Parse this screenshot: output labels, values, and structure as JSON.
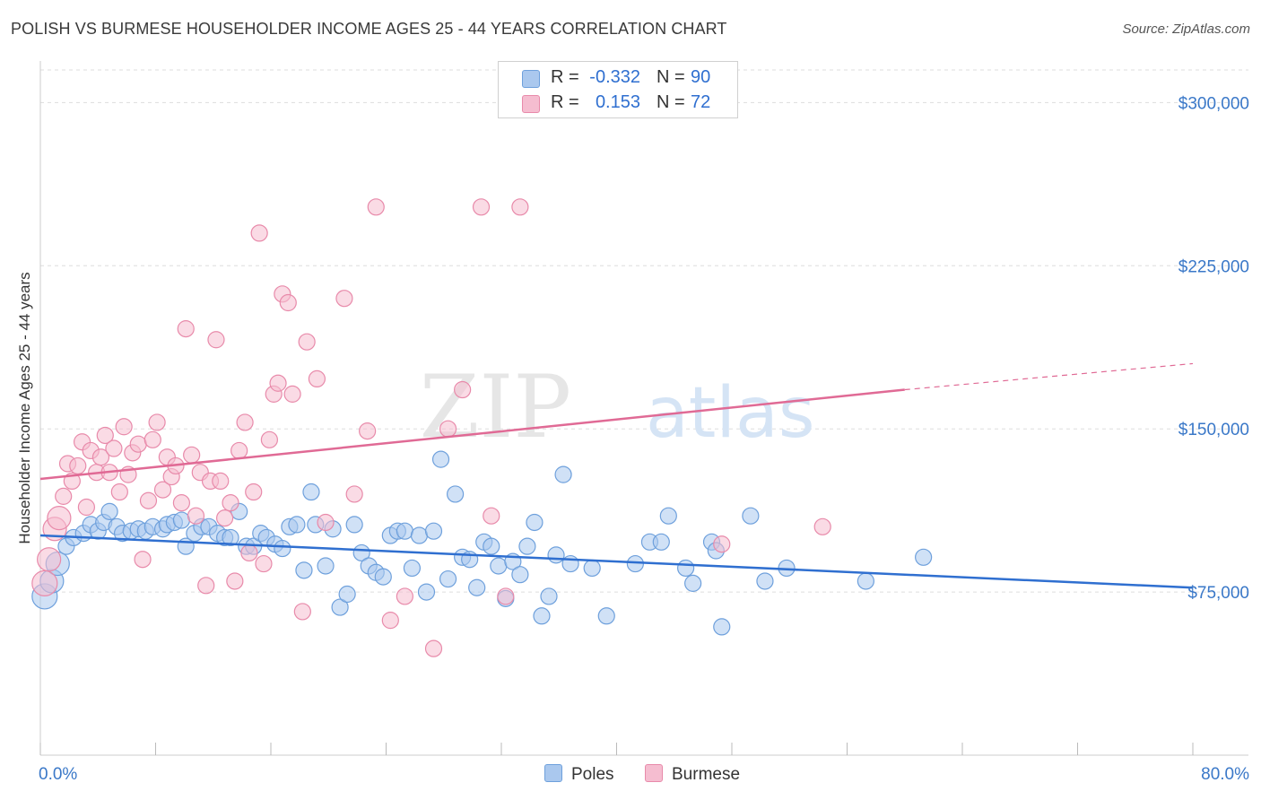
{
  "header": {
    "title": "POLISH VS BURMESE HOUSEHOLDER INCOME AGES 25 - 44 YEARS CORRELATION CHART",
    "source": "Source: ZipAtlas.com"
  },
  "watermark": {
    "zip": "ZIP",
    "atlas": "atlas"
  },
  "legend": {
    "poles": {
      "r_label": "R =",
      "r_value": "-0.332",
      "n_label": "N =",
      "n_value": "90"
    },
    "burmese": {
      "r_label": "R =",
      "r_value": "0.153",
      "n_label": "N =",
      "n_value": "72"
    }
  },
  "bottom_legend": {
    "poles": "Poles",
    "burmese": "Burmese"
  },
  "colors": {
    "poles_fill": "#aac8ee",
    "poles_stroke": "#6ea0dc",
    "poles_line": "#2f6fd0",
    "burmese_fill": "#f5bdd0",
    "burmese_stroke": "#e88aaa",
    "burmese_line": "#e06a95",
    "axis_label": "#3a78c8"
  },
  "chart_data": {
    "type": "scatter",
    "title": "POLISH VS BURMESE HOUSEHOLDER INCOME AGES 25 - 44 YEARS CORRELATION CHART",
    "xlabel": "",
    "ylabel": "Householder Income Ages 25 - 44 years",
    "xlim": [
      0,
      80
    ],
    "ylim": [
      0,
      315000
    ],
    "x_tick_labels": [
      "0.0%",
      "80.0%"
    ],
    "y_ticks": [
      75000,
      150000,
      225000,
      300000
    ],
    "y_tick_labels": [
      "$75,000",
      "$150,000",
      "$225,000",
      "$300,000"
    ],
    "grid": true,
    "legend_position": "top-center",
    "series": [
      {
        "name": "Poles",
        "trend": {
          "x": [
            0,
            80
          ],
          "y": [
            101000,
            77000
          ],
          "dashed_after": null
        },
        "points": [
          [
            0.3,
            73000
          ],
          [
            0.8,
            80000
          ],
          [
            1.2,
            88000
          ],
          [
            1.8,
            96000
          ],
          [
            2.3,
            100000
          ],
          [
            3.0,
            102000
          ],
          [
            3.5,
            106000
          ],
          [
            4.0,
            103000
          ],
          [
            4.4,
            107000
          ],
          [
            4.8,
            112000
          ],
          [
            5.3,
            105000
          ],
          [
            5.7,
            102000
          ],
          [
            6.3,
            103000
          ],
          [
            6.8,
            104000
          ],
          [
            7.3,
            103000
          ],
          [
            7.8,
            105000
          ],
          [
            8.5,
            104000
          ],
          [
            8.8,
            106000
          ],
          [
            9.3,
            107000
          ],
          [
            9.8,
            108000
          ],
          [
            10.1,
            96000
          ],
          [
            10.7,
            102000
          ],
          [
            11.2,
            105000
          ],
          [
            11.7,
            105000
          ],
          [
            12.3,
            102000
          ],
          [
            12.8,
            100000
          ],
          [
            13.2,
            100000
          ],
          [
            13.8,
            112000
          ],
          [
            14.3,
            96000
          ],
          [
            14.8,
            96000
          ],
          [
            15.3,
            102000
          ],
          [
            15.7,
            100000
          ],
          [
            16.3,
            97000
          ],
          [
            16.8,
            95000
          ],
          [
            17.3,
            105000
          ],
          [
            17.8,
            106000
          ],
          [
            18.3,
            85000
          ],
          [
            18.8,
            121000
          ],
          [
            19.1,
            106000
          ],
          [
            19.8,
            87000
          ],
          [
            20.3,
            104000
          ],
          [
            20.8,
            68000
          ],
          [
            21.3,
            74000
          ],
          [
            21.8,
            106000
          ],
          [
            22.3,
            93000
          ],
          [
            22.8,
            87000
          ],
          [
            23.3,
            84000
          ],
          [
            23.8,
            82000
          ],
          [
            24.3,
            101000
          ],
          [
            24.8,
            103000
          ],
          [
            25.3,
            103000
          ],
          [
            25.8,
            86000
          ],
          [
            26.3,
            101000
          ],
          [
            26.8,
            75000
          ],
          [
            27.3,
            103000
          ],
          [
            27.8,
            136000
          ],
          [
            28.3,
            81000
          ],
          [
            28.8,
            120000
          ],
          [
            29.3,
            91000
          ],
          [
            29.8,
            90000
          ],
          [
            30.3,
            77000
          ],
          [
            30.8,
            98000
          ],
          [
            31.3,
            96000
          ],
          [
            31.8,
            87000
          ],
          [
            32.3,
            72000
          ],
          [
            32.8,
            89000
          ],
          [
            33.3,
            83000
          ],
          [
            33.8,
            96000
          ],
          [
            34.3,
            107000
          ],
          [
            34.8,
            64000
          ],
          [
            35.3,
            73000
          ],
          [
            35.8,
            92000
          ],
          [
            36.3,
            129000
          ],
          [
            36.8,
            88000
          ],
          [
            38.3,
            86000
          ],
          [
            39.3,
            64000
          ],
          [
            41.3,
            88000
          ],
          [
            42.3,
            98000
          ],
          [
            43.1,
            98000
          ],
          [
            43.6,
            110000
          ],
          [
            44.8,
            86000
          ],
          [
            45.3,
            79000
          ],
          [
            46.6,
            98000
          ],
          [
            46.9,
            94000
          ],
          [
            47.3,
            59000
          ],
          [
            49.3,
            110000
          ],
          [
            50.3,
            80000
          ],
          [
            51.8,
            86000
          ],
          [
            57.3,
            80000
          ],
          [
            61.3,
            91000
          ]
        ]
      },
      {
        "name": "Burmese",
        "trend": {
          "x": [
            0,
            60,
            80
          ],
          "y": [
            127000,
            168000,
            180000
          ],
          "dashed_after": 60
        },
        "points": [
          [
            0.3,
            79000
          ],
          [
            0.6,
            90000
          ],
          [
            1.0,
            104000
          ],
          [
            1.3,
            109000
          ],
          [
            1.6,
            119000
          ],
          [
            1.9,
            134000
          ],
          [
            2.2,
            126000
          ],
          [
            2.6,
            133000
          ],
          [
            2.9,
            144000
          ],
          [
            3.2,
            114000
          ],
          [
            3.5,
            140000
          ],
          [
            3.9,
            130000
          ],
          [
            4.2,
            137000
          ],
          [
            4.5,
            147000
          ],
          [
            4.8,
            130000
          ],
          [
            5.1,
            141000
          ],
          [
            5.5,
            121000
          ],
          [
            5.8,
            151000
          ],
          [
            6.1,
            129000
          ],
          [
            6.4,
            139000
          ],
          [
            6.8,
            143000
          ],
          [
            7.1,
            90000
          ],
          [
            7.5,
            117000
          ],
          [
            7.8,
            145000
          ],
          [
            8.1,
            153000
          ],
          [
            8.5,
            122000
          ],
          [
            8.8,
            137000
          ],
          [
            9.1,
            128000
          ],
          [
            9.4,
            133000
          ],
          [
            9.8,
            116000
          ],
          [
            10.1,
            196000
          ],
          [
            10.5,
            138000
          ],
          [
            10.8,
            110000
          ],
          [
            11.1,
            130000
          ],
          [
            11.5,
            78000
          ],
          [
            11.8,
            126000
          ],
          [
            12.2,
            191000
          ],
          [
            12.5,
            126000
          ],
          [
            12.8,
            109000
          ],
          [
            13.2,
            116000
          ],
          [
            13.5,
            80000
          ],
          [
            13.8,
            140000
          ],
          [
            14.2,
            153000
          ],
          [
            14.5,
            93000
          ],
          [
            14.8,
            121000
          ],
          [
            15.2,
            240000
          ],
          [
            15.5,
            88000
          ],
          [
            15.9,
            145000
          ],
          [
            16.2,
            166000
          ],
          [
            16.5,
            171000
          ],
          [
            16.8,
            212000
          ],
          [
            17.2,
            208000
          ],
          [
            17.5,
            166000
          ],
          [
            18.2,
            66000
          ],
          [
            18.5,
            190000
          ],
          [
            19.2,
            173000
          ],
          [
            19.8,
            107000
          ],
          [
            21.1,
            210000
          ],
          [
            21.8,
            120000
          ],
          [
            22.7,
            149000
          ],
          [
            23.3,
            252000
          ],
          [
            24.3,
            62000
          ],
          [
            25.3,
            73000
          ],
          [
            27.3,
            49000
          ],
          [
            28.3,
            150000
          ],
          [
            29.3,
            168000
          ],
          [
            30.6,
            252000
          ],
          [
            31.3,
            110000
          ],
          [
            32.3,
            73000
          ],
          [
            33.3,
            252000
          ],
          [
            47.3,
            97000
          ],
          [
            54.3,
            105000
          ]
        ]
      }
    ]
  }
}
